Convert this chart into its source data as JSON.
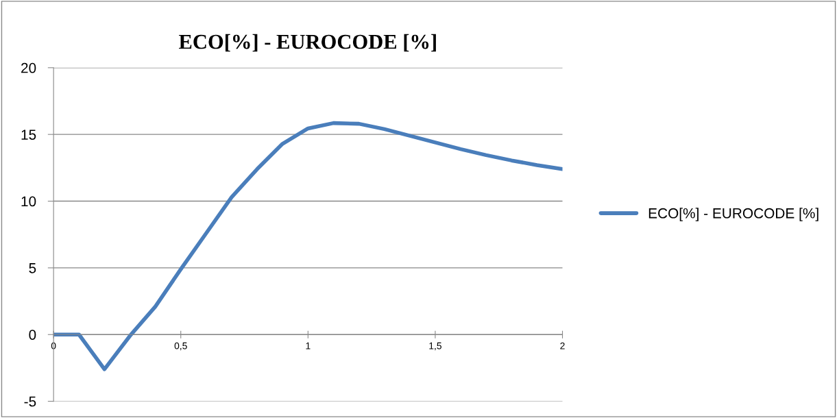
{
  "chart_data": {
    "type": "line",
    "title": "ECO[%] - EUROCODE [%]",
    "x": [
      0,
      0.1,
      0.2,
      0.3,
      0.4,
      0.5,
      0.6,
      0.7,
      0.8,
      0.9,
      1.0,
      1.1,
      1.2,
      1.3,
      1.4,
      1.5,
      1.6,
      1.7,
      1.8,
      1.9,
      2.0
    ],
    "series": [
      {
        "name": "ECO[%] - EUROCODE [%]",
        "color": "#4a7ebb",
        "values": [
          0,
          0,
          -2.6,
          -0.1,
          2.1,
          4.9,
          7.6,
          10.3,
          12.4,
          14.3,
          15.45,
          15.85,
          15.8,
          15.4,
          14.9,
          14.4,
          13.9,
          13.45,
          13.05,
          12.7,
          12.4
        ]
      }
    ],
    "xlim": [
      0,
      2
    ],
    "xticks": [
      0,
      {
        "value": 0.5,
        "label": "0,5"
      },
      1,
      {
        "value": 1.5,
        "label": "1,5"
      },
      2
    ],
    "ylim": [
      -5,
      20
    ],
    "yticks": [
      -5,
      0,
      5,
      10,
      15,
      20
    ],
    "grid": "y",
    "legend": "right",
    "marker": "none",
    "line_style": "solid"
  }
}
